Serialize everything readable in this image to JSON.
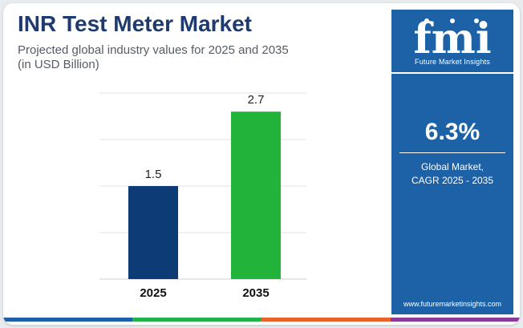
{
  "header": {
    "title": "INR Test Meter Market",
    "subtitle_line1": "Projected global industry values for 2025 and 2035",
    "subtitle_line2": "(in USD Billion)"
  },
  "sidebar": {
    "logo_text": "fmi",
    "brand": "Future Market Insights",
    "cagr_value": "6.3%",
    "cagr_label_line1": "Global Market,",
    "cagr_label_line2": "CAGR 2025 - 2035",
    "website": "www.futuremarketinsights.com"
  },
  "colors": {
    "title": "#1f3a6e",
    "bar_2025": "#0d3b75",
    "bar_2035": "#22b33a",
    "sidebar_bg": "#1d62a6"
  },
  "chart_data": {
    "type": "bar",
    "title": "INR Test Meter Market",
    "subtitle": "Projected global industry values for 2025 and 2035 (in USD Billion)",
    "categories": [
      "2025",
      "2035"
    ],
    "values": [
      1.5,
      2.7
    ],
    "value_labels": [
      "1.5",
      "2.7"
    ],
    "bar_colors": [
      "#0d3b75",
      "#22b33a"
    ],
    "ylim": [
      0,
      3.0
    ],
    "grid": true,
    "legend": "none",
    "xlabel": "",
    "ylabel": ""
  }
}
